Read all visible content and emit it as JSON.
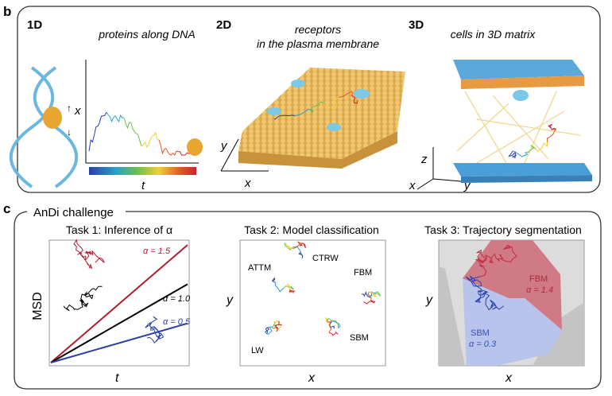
{
  "panel_b": {
    "label": "b",
    "d1": {
      "tag": "1D",
      "title": "proteins along DNA",
      "xaxis": "x",
      "taxis": "t"
    },
    "d2": {
      "tag": "2D",
      "title_line1": "receptors",
      "title_line2": "in the plasma membrane",
      "x": "x",
      "y": "y"
    },
    "d3": {
      "tag": "3D",
      "title": "cells in 3D matrix",
      "x": "x",
      "y": "y",
      "z": "z"
    }
  },
  "panel_c": {
    "label": "c",
    "title": "AnDi challenge",
    "task1": {
      "title": "Task 1: Inference of α",
      "ylabel": "MSD",
      "xlabel": "t",
      "lines": [
        {
          "label": "α = 1.5",
          "alpha": 1.5,
          "color": "#b01e2e"
        },
        {
          "label": "α = 1.0",
          "alpha": 1.0,
          "color": "#000000"
        },
        {
          "label": "α = 0.5",
          "alpha": 0.5,
          "color": "#2a3fa8"
        }
      ]
    },
    "task2": {
      "title": "Task 2: Model classification",
      "ylabel": "y",
      "xlabel": "x",
      "models": [
        "ATTM",
        "CTRW",
        "FBM",
        "LW",
        "SBM"
      ]
    },
    "task3": {
      "title": "Task 3: Trajectory segmentation",
      "ylabel": "y",
      "xlabel": "x",
      "seg1": {
        "model": "FBM",
        "alpha": "α = 1.4",
        "color": "#c0303f"
      },
      "seg2": {
        "model": "SBM",
        "alpha": "α = 0.3",
        "color": "#2a3fb0"
      }
    }
  }
}
